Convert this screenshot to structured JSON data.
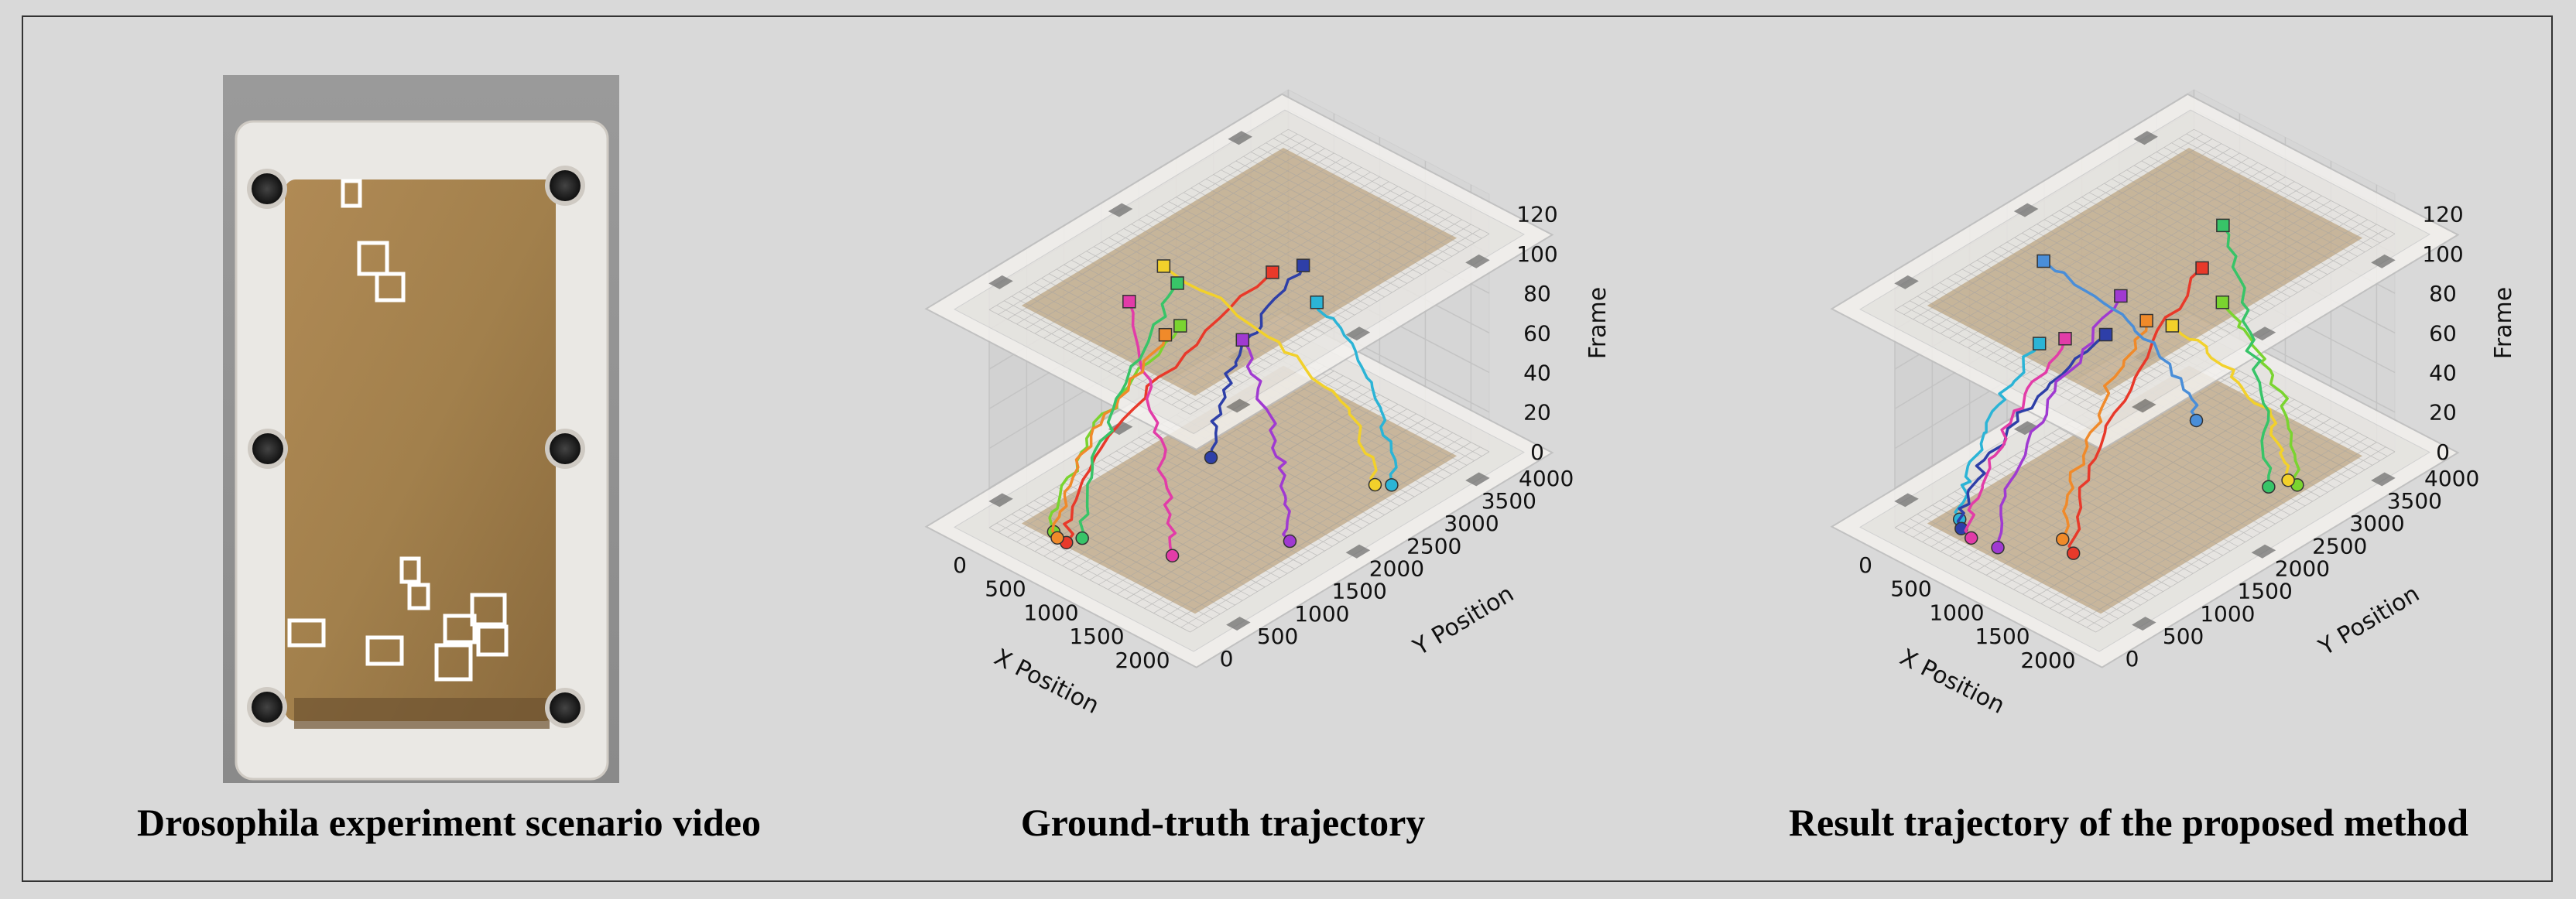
{
  "panels": {
    "photo": {
      "caption": "Drosophila experiment scenario video"
    },
    "ground_truth": {
      "caption": "Ground-truth trajectory"
    },
    "result": {
      "caption": "Result trajectory of the proposed method"
    }
  },
  "axes": {
    "x_label": "X Position",
    "y_label": "Y Position",
    "z_label": "Frame",
    "x_ticks": [
      "0",
      "500",
      "1000",
      "1500",
      "2000"
    ],
    "y_ticks": [
      "0",
      "500",
      "1000",
      "1500",
      "2000",
      "2500",
      "3000",
      "3500",
      "4000"
    ],
    "z_ticks": [
      "0",
      "20",
      "40",
      "60",
      "80",
      "100",
      "120"
    ]
  },
  "colors": {
    "background": "#d9d9d9",
    "gel": "#a8834f",
    "tracks": [
      "#e8392a",
      "#2bb4d6",
      "#7ad430",
      "#2e3fa8",
      "#a03ad1",
      "#e23ca8",
      "#f2d12b",
      "#f08a2a",
      "#38c468",
      "#c43a5a",
      "#4a8ed8"
    ]
  },
  "chart_data": [
    {
      "type": "scatter",
      "title": "Ground-truth trajectory",
      "xlabel": "X Position",
      "ylabel": "Y Position",
      "zlabel": "Frame",
      "xlim": [
        0,
        2200
      ],
      "ylim": [
        0,
        4000
      ],
      "zlim": [
        0,
        130
      ],
      "series": [
        {
          "color": "#e8392a",
          "start": [
            600,
            300,
            0
          ],
          "end": [
            1300,
            2200,
            110
          ]
        },
        {
          "color": "#2bb4d6",
          "start": [
            1950,
            3000,
            0
          ],
          "end": [
            1950,
            2000,
            115
          ]
        },
        {
          "color": "#7ad430",
          "start": [
            420,
            350,
            0
          ],
          "end": [
            700,
            1700,
            80
          ]
        },
        {
          "color": "#2e3fa8",
          "start": [
            1200,
            1500,
            30
          ],
          "end": [
            1800,
            2000,
            130
          ]
        },
        {
          "color": "#a03ad1",
          "start": [
            1900,
            1700,
            0
          ],
          "end": [
            1300,
            1800,
            85
          ]
        },
        {
          "color": "#e23ca8",
          "start": [
            1350,
            800,
            0
          ],
          "end": [
            550,
            1200,
            100
          ]
        },
        {
          "color": "#f2d12b",
          "start": [
            1850,
            2900,
            0
          ],
          "end": [
            600,
            1600,
            110
          ]
        },
        {
          "color": "#f08a2a",
          "start": [
            500,
            300,
            0
          ],
          "end": [
            700,
            1500,
            80
          ]
        },
        {
          "color": "#38c468",
          "start": [
            650,
            450,
            0
          ],
          "end": [
            750,
            1600,
            105
          ]
        }
      ]
    },
    {
      "type": "scatter",
      "title": "Result trajectory of the proposed method",
      "xlabel": "X Position",
      "ylabel": "Y Position",
      "zlabel": "Frame",
      "xlim": [
        0,
        2200
      ],
      "ylim": [
        0,
        4000
      ],
      "zlim": [
        0,
        130
      ],
      "series": [
        {
          "color": "#e8392a",
          "start": [
            1300,
            800,
            0
          ],
          "end": [
            1400,
            2400,
            110
          ]
        },
        {
          "color": "#2bb4d6",
          "start": [
            300,
            500,
            0
          ],
          "end": [
            600,
            1200,
            80
          ]
        },
        {
          "color": "#7ad430",
          "start": [
            1950,
            3000,
            0
          ],
          "end": [
            1950,
            2000,
            115
          ]
        },
        {
          "color": "#2e3fa8",
          "start": [
            400,
            400,
            0
          ],
          "end": [
            1000,
            1600,
            85
          ]
        },
        {
          "color": "#a03ad1",
          "start": [
            800,
            400,
            0
          ],
          "end": [
            1000,
            1800,
            100
          ]
        },
        {
          "color": "#e23ca8",
          "start": [
            550,
            350,
            0
          ],
          "end": [
            800,
            1300,
            85
          ]
        },
        {
          "color": "#f2d12b",
          "start": [
            1850,
            3000,
            0
          ],
          "end": [
            1400,
            2000,
            90
          ]
        },
        {
          "color": "#f08a2a",
          "start": [
            1100,
            900,
            0
          ],
          "end": [
            1200,
            1900,
            90
          ]
        },
        {
          "color": "#38c468",
          "start": [
            1800,
            2800,
            0
          ],
          "end": [
            1300,
            2800,
            120
          ]
        },
        {
          "color": "#4a8ed8",
          "start": [
            1500,
            2200,
            40
          ],
          "end": [
            400,
            1500,
            110
          ]
        }
      ]
    }
  ]
}
